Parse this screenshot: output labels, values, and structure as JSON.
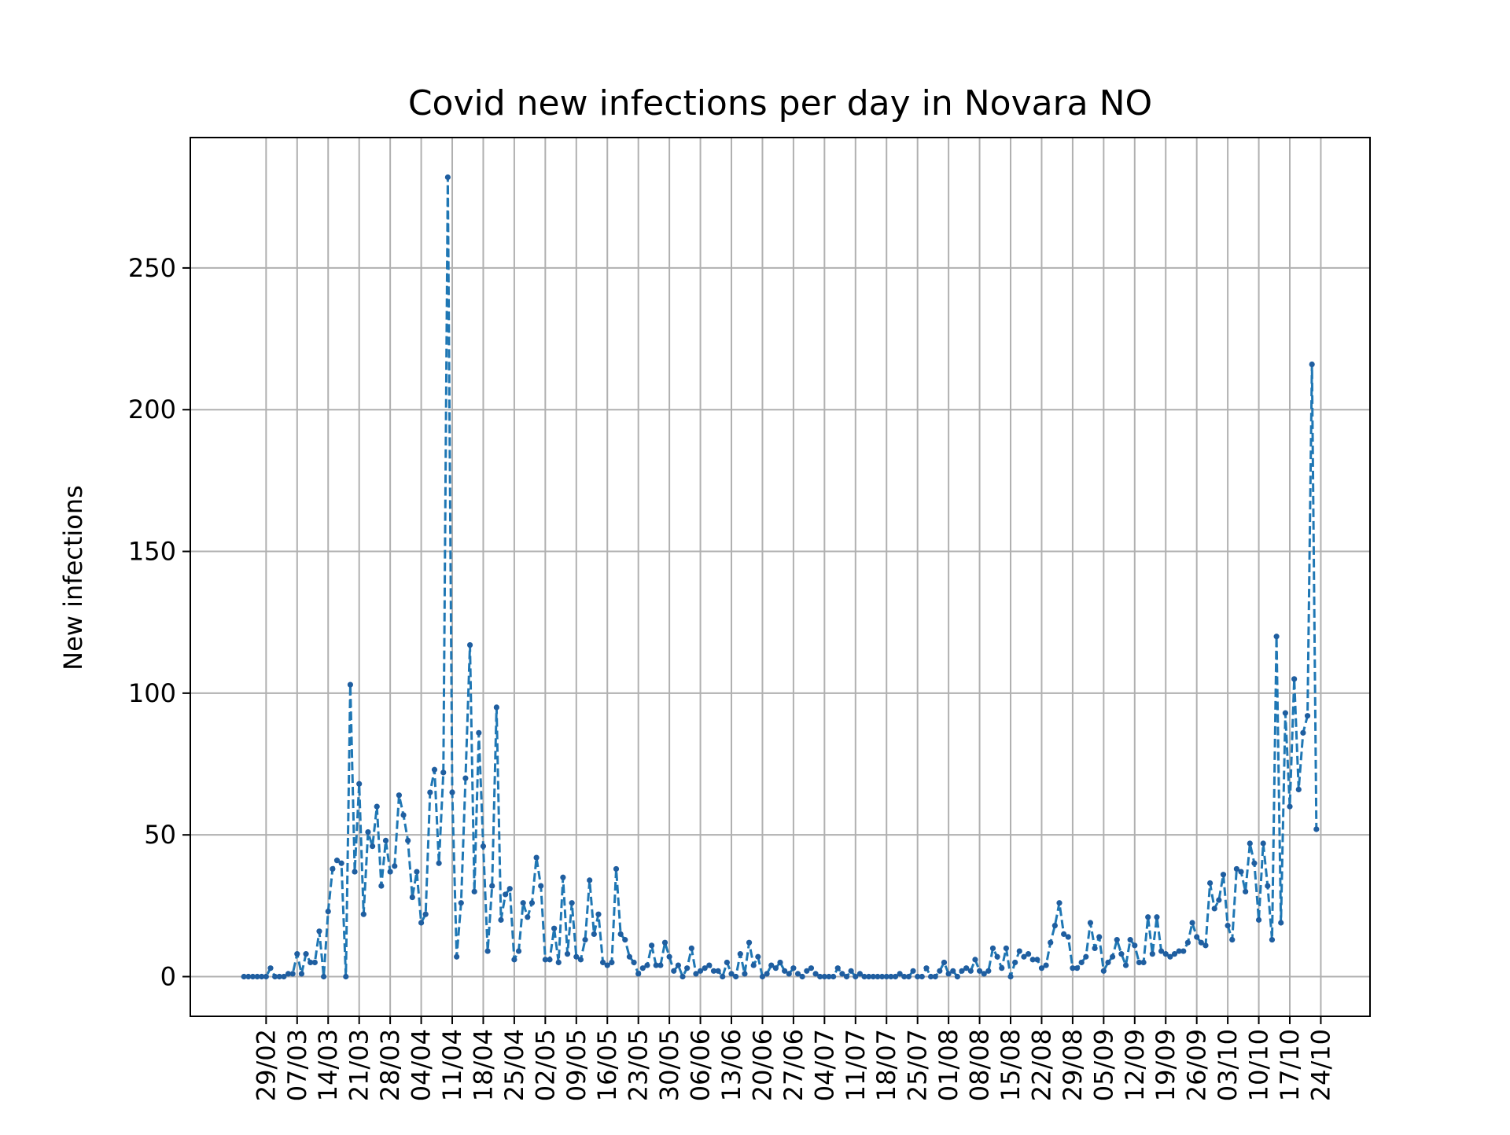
{
  "chart_data": {
    "type": "line",
    "title": "Covid new infections per day in Novara NO",
    "xlabel": "",
    "ylabel": "New infections",
    "grid": true,
    "legend": "none",
    "line_style": "dashed with point markers",
    "colors": {
      "series": "#1f77b4",
      "grid": "#b0b0b0",
      "axes": "#000000",
      "background": "#ffffff"
    },
    "ylim": [
      -14,
      296
    ],
    "y_ticks": [
      0,
      50,
      100,
      150,
      200,
      250
    ],
    "x_start": "2020-02-24",
    "x_tick_labels": [
      "29/02",
      "07/03",
      "14/03",
      "21/03",
      "28/03",
      "04/04",
      "11/04",
      "18/04",
      "25/04",
      "02/05",
      "09/05",
      "16/05",
      "23/05",
      "30/05",
      "06/06",
      "13/06",
      "20/06",
      "27/06",
      "04/07",
      "11/07",
      "18/07",
      "25/07",
      "01/08",
      "08/08",
      "15/08",
      "22/08",
      "29/08",
      "05/09",
      "12/09",
      "19/09",
      "26/09",
      "03/10",
      "10/10",
      "17/10",
      "24/10"
    ],
    "series": [
      {
        "values": [
          0,
          0,
          0,
          0,
          0,
          0,
          3,
          0,
          0,
          0,
          1,
          1,
          8,
          1,
          8,
          5,
          5,
          16,
          0,
          23,
          38,
          41,
          40,
          0,
          103,
          37,
          68,
          22,
          51,
          46,
          60,
          32,
          48,
          37,
          39,
          64,
          57,
          48,
          28,
          37,
          19,
          22,
          65,
          73,
          40,
          72,
          282,
          65,
          7,
          26,
          70,
          117,
          30,
          86,
          46,
          9,
          32,
          95,
          20,
          29,
          31,
          6,
          9,
          26,
          21,
          26,
          42,
          32,
          6,
          6,
          17,
          5,
          35,
          8,
          26,
          7,
          6,
          13,
          34,
          15,
          22,
          5,
          4,
          5,
          38,
          15,
          13,
          7,
          5,
          1,
          3,
          4,
          11,
          4,
          4,
          12,
          7,
          2,
          4,
          0,
          3,
          10,
          1,
          2,
          3,
          4,
          2,
          2,
          0,
          5,
          1,
          0,
          8,
          1,
          12,
          4,
          7,
          0,
          1,
          4,
          3,
          5,
          2,
          1,
          3,
          1,
          0,
          2,
          3,
          1,
          0,
          0,
          0,
          0,
          3,
          1,
          0,
          2,
          0,
          1,
          0,
          0,
          0,
          0,
          0,
          0,
          0,
          0,
          1,
          0,
          0,
          2,
          0,
          0,
          3,
          0,
          0,
          2,
          5,
          1,
          2,
          0,
          2,
          3,
          2,
          6,
          2,
          1,
          2,
          10,
          7,
          3,
          10,
          0,
          5,
          9,
          7,
          8,
          6,
          6,
          3,
          4,
          12,
          18,
          26,
          15,
          14,
          3,
          3,
          5,
          7,
          19,
          10,
          14,
          2,
          5,
          7,
          13,
          8,
          4,
          13,
          11,
          5,
          5,
          21,
          8,
          21,
          9,
          8,
          7,
          8,
          9,
          9,
          12,
          19,
          14,
          12,
          11,
          33,
          24,
          27,
          36,
          18,
          13,
          38,
          37,
          30,
          47,
          40,
          20,
          47,
          32,
          13,
          120,
          19,
          93,
          60,
          105,
          66,
          86,
          92,
          216,
          52
        ]
      }
    ]
  }
}
